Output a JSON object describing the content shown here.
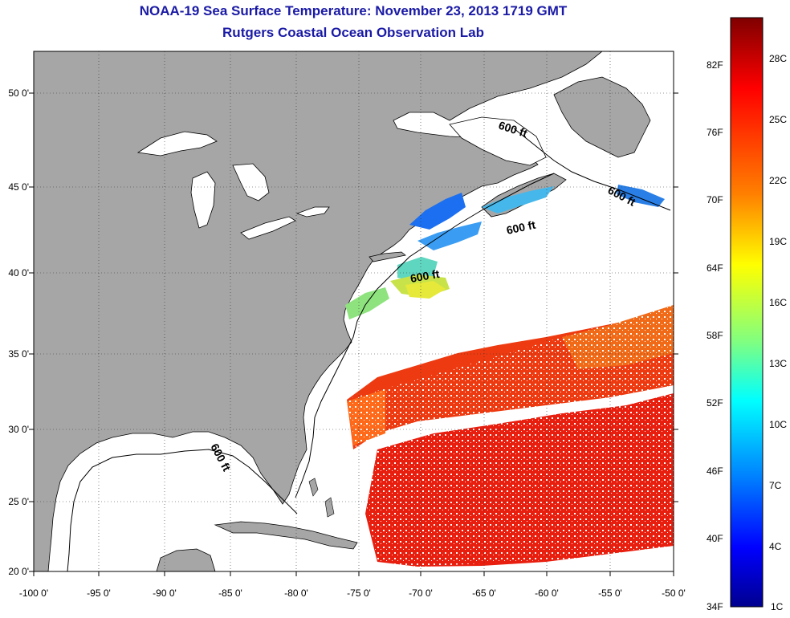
{
  "title": {
    "line1": "NOAA-19 Sea Surface Temperature:  November 23, 2013 1719 GMT",
    "line2": "Rutgers Coastal Ocean Observation Lab"
  },
  "map": {
    "lon_range": [
      -100,
      -50
    ],
    "lat_range": [
      20,
      52.5
    ],
    "lat_labels": [
      "50 0'",
      "45 0'",
      "40 0'",
      "35 0'",
      "30 0'",
      "25 0'",
      "20 0'"
    ],
    "lon_labels": [
      "-100 0'",
      "-95 0'",
      "-90 0'",
      "-85 0'",
      "-80 0'",
      "-75 0'",
      "-70 0'",
      "-65 0'",
      "-60 0'",
      "-55 0'",
      "-50 0'"
    ],
    "contour_label": "600 ft",
    "colors": {
      "land": "#a6a6a6",
      "ocean": "#ffffff",
      "coast": "#000000"
    }
  },
  "colorbar": {
    "fahrenheit_labels": [
      "82F",
      "76F",
      "70F",
      "64F",
      "58F",
      "52F",
      "46F",
      "40F",
      "34F"
    ],
    "celsius_labels": [
      "28C",
      "25C",
      "22C",
      "19C",
      "16C",
      "13C",
      "10C",
      "7C",
      "4C",
      "1C"
    ],
    "gradient": [
      "#7f0000",
      "#ff0000",
      "#ff8000",
      "#ffff00",
      "#80ff80",
      "#00ffff",
      "#0080ff",
      "#0000ff",
      "#00008f"
    ]
  }
}
